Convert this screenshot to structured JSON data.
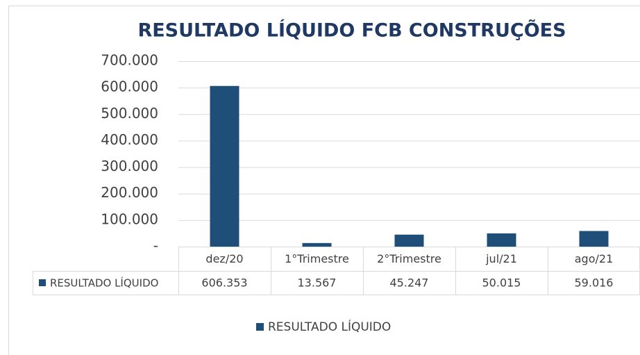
{
  "chart_data": {
    "type": "bar",
    "title": "RESULTADO LÍQUIDO FCB CONSTRUÇÕES",
    "categories": [
      "dez/20",
      "1°Trimestre",
      "2°Trimestre",
      "jul/21",
      "ago/21"
    ],
    "series": [
      {
        "name": "RESULTADO LÍQUIDO",
        "color": "#1f4e79",
        "values": [
          606353,
          13567,
          45247,
          50015,
          59016
        ],
        "value_labels": [
          "606.353",
          "13.567",
          "45.247",
          "50.015",
          "59.016"
        ]
      }
    ],
    "ylim": [
      0,
      700000
    ],
    "yticks": [
      {
        "value": 0,
        "label": "-"
      },
      {
        "value": 100000,
        "label": "100.000"
      },
      {
        "value": 200000,
        "label": "200.000"
      },
      {
        "value": 300000,
        "label": "300.000"
      },
      {
        "value": 400000,
        "label": "400.000"
      },
      {
        "value": 500000,
        "label": "500.000"
      },
      {
        "value": 600000,
        "label": "600.000"
      },
      {
        "value": 700000,
        "label": "700.000"
      }
    ],
    "grid": true,
    "legend": "bottom"
  }
}
